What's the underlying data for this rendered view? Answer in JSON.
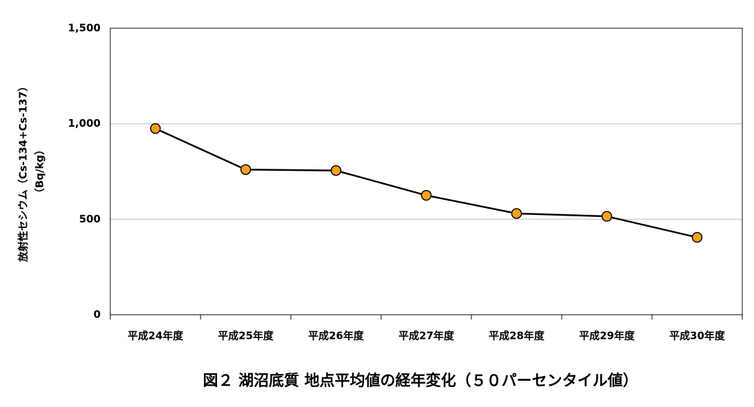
{
  "chart_data": {
    "type": "line",
    "title": "図２ 湖沼底質 地点平均値の経年変化（５０パーセンタイル値）",
    "y_label": [
      "放射性セシウム（Cs-134+Cs-137）",
      "（Bq/kg）"
    ],
    "categories": [
      "平成24年度",
      "平成25年度",
      "平成26年度",
      "平成27年度",
      "平成28年度",
      "平成29年度",
      "平成30年度"
    ],
    "series": [
      {
        "color": "#f7a01d",
        "values": [
          975,
          760,
          755,
          625,
          530,
          515,
          405
        ]
      }
    ],
    "ylim": [
      0,
      1500
    ],
    "yticks": [
      0,
      500,
      {
        "value": 1000,
        "label": "1,000"
      },
      {
        "value": 1500,
        "label": "1,500"
      }
    ],
    "grid": true
  }
}
